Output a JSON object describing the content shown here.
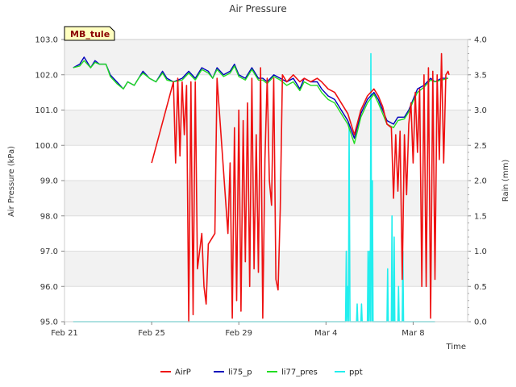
{
  "chart_data": {
    "type": "line",
    "title": "Air Pressure",
    "xlabel": "Time",
    "ylabel": "Air Pressure (kPa)",
    "y2label": "Rain (mm)",
    "badge": "MB_tule",
    "xlim": [
      0,
      18.5
    ],
    "ylim": [
      95.0,
      103.0
    ],
    "y2lim": [
      0.0,
      4.0
    ],
    "x_ticks": [
      {
        "value": 0,
        "label": "Feb 21"
      },
      {
        "value": 4,
        "label": "Feb 25"
      },
      {
        "value": 8,
        "label": "Feb 29"
      },
      {
        "value": 12,
        "label": "Mar 4"
      },
      {
        "value": 16,
        "label": "Mar 8"
      }
    ],
    "y_ticks": [
      "95.0",
      "96.0",
      "97.0",
      "98.0",
      "99.0",
      "100.0",
      "101.0",
      "102.0",
      "103.0"
    ],
    "y2_ticks": [
      "0.0",
      "0.5",
      "1.0",
      "1.5",
      "2.0",
      "2.5",
      "3.0",
      "3.5",
      "4.0"
    ],
    "grid": true,
    "legend_position": "bottom-center",
    "colors": {
      "AirP": "#ee1111",
      "li75_p": "#0000bb",
      "li77_pres": "#22dd22",
      "ppt": "#22eeee",
      "band": "#f2f2f2"
    },
    "series": [
      {
        "name": "li75_p",
        "axis": "left",
        "x": [
          0.4,
          0.7,
          0.9,
          1.2,
          1.4,
          1.6,
          1.9,
          2.1,
          2.4,
          2.7,
          2.9,
          3.2,
          3.4,
          3.6,
          3.9,
          4.2,
          4.5,
          4.7,
          5.0,
          5.4,
          5.7,
          6.0,
          6.3,
          6.6,
          6.8,
          7.0,
          7.3,
          7.6,
          7.8,
          8.0,
          8.3,
          8.6,
          8.9,
          9.1,
          9.3,
          9.6,
          9.9,
          10.2,
          10.5,
          10.8,
          11.0,
          11.3,
          11.6,
          11.8,
          12.1,
          12.4,
          12.7,
          13.0,
          13.3,
          13.6,
          13.9,
          14.2,
          14.4,
          14.6,
          14.8,
          15.1,
          15.3,
          15.6,
          15.8,
          16.0,
          16.2,
          16.5,
          16.8,
          17.0,
          17.3,
          17.6
        ],
        "values": [
          102.2,
          102.3,
          102.5,
          102.2,
          102.4,
          102.3,
          102.3,
          102.0,
          101.8,
          101.6,
          101.8,
          101.7,
          101.9,
          102.1,
          101.9,
          101.8,
          102.1,
          101.9,
          101.8,
          101.9,
          102.1,
          101.9,
          102.2,
          102.1,
          101.9,
          102.2,
          102.0,
          102.1,
          102.3,
          102.0,
          101.9,
          102.2,
          101.9,
          101.9,
          101.8,
          102.0,
          101.9,
          101.8,
          101.9,
          101.6,
          101.9,
          101.8,
          101.8,
          101.6,
          101.4,
          101.3,
          101.0,
          100.7,
          100.2,
          100.9,
          101.3,
          101.5,
          101.3,
          101.0,
          100.7,
          100.6,
          100.8,
          100.8,
          101.0,
          101.3,
          101.6,
          101.7,
          101.9,
          101.8,
          101.9,
          101.9
        ]
      },
      {
        "name": "li77_pres",
        "axis": "left",
        "x": [
          0.4,
          0.7,
          0.9,
          1.2,
          1.4,
          1.6,
          1.9,
          2.1,
          2.4,
          2.7,
          2.9,
          3.2,
          3.4,
          3.6,
          3.9,
          4.2,
          4.5,
          4.7,
          5.0,
          5.4,
          5.7,
          6.0,
          6.3,
          6.6,
          6.8,
          7.0,
          7.3,
          7.6,
          7.8,
          8.0,
          8.3,
          8.6,
          8.9,
          9.1,
          9.3,
          9.6,
          9.9,
          10.2,
          10.5,
          10.8,
          11.0,
          11.3,
          11.6,
          11.8,
          12.1,
          12.4,
          12.7,
          13.0,
          13.3,
          13.6,
          13.9,
          14.2,
          14.4,
          14.6,
          14.8,
          15.1,
          15.3,
          15.6,
          15.8,
          16.0,
          16.2,
          16.5,
          16.8,
          17.0,
          17.3,
          17.6
        ],
        "values": [
          102.2,
          102.25,
          102.4,
          102.2,
          102.35,
          102.3,
          102.3,
          101.95,
          101.75,
          101.6,
          101.8,
          101.7,
          101.9,
          102.05,
          101.9,
          101.8,
          102.05,
          101.85,
          101.8,
          101.85,
          102.05,
          101.85,
          102.15,
          102.05,
          101.9,
          102.15,
          101.95,
          102.05,
          102.25,
          101.95,
          101.85,
          102.15,
          101.85,
          101.85,
          101.75,
          101.95,
          101.85,
          101.7,
          101.8,
          101.55,
          101.8,
          101.7,
          101.7,
          101.5,
          101.3,
          101.2,
          100.9,
          100.6,
          100.05,
          100.8,
          101.2,
          101.45,
          101.2,
          100.9,
          100.6,
          100.5,
          100.7,
          100.75,
          100.95,
          101.25,
          101.5,
          101.65,
          101.85,
          101.8,
          101.85,
          101.9
        ]
      },
      {
        "name": "AirP",
        "axis": "left",
        "x": [
          4.0,
          5.0,
          5.1,
          5.2,
          5.3,
          5.4,
          5.5,
          5.6,
          5.7,
          5.8,
          5.9,
          6.0,
          6.1,
          6.2,
          6.3,
          6.4,
          6.5,
          6.6,
          6.7,
          6.9,
          7.0,
          7.5,
          7.6,
          7.7,
          7.8,
          7.9,
          8.0,
          8.1,
          8.2,
          8.3,
          8.4,
          8.5,
          8.6,
          8.7,
          8.8,
          8.9,
          9.0,
          9.1,
          9.2,
          9.3,
          9.4,
          9.5,
          9.6,
          9.7,
          9.8,
          9.9,
          10.0,
          10.2,
          10.5,
          10.8,
          11.0,
          11.3,
          11.6,
          11.8,
          12.1,
          12.4,
          12.7,
          13.0,
          13.3,
          13.6,
          13.9,
          14.2,
          14.4,
          14.6,
          14.8,
          15.0,
          15.1,
          15.2,
          15.3,
          15.4,
          15.5,
          15.6,
          15.7,
          15.8,
          15.9,
          16.0,
          16.1,
          16.2,
          16.3,
          16.4,
          16.5,
          16.6,
          16.7,
          16.8,
          16.9,
          17.0,
          17.1,
          17.2,
          17.3,
          17.4,
          17.5,
          17.6,
          17.65
        ],
        "values": [
          99.5,
          101.8,
          99.5,
          101.9,
          99.7,
          101.8,
          100.3,
          101.7,
          95.0,
          101.8,
          95.2,
          101.8,
          96.5,
          97.0,
          97.5,
          96.0,
          95.5,
          97.2,
          97.3,
          97.5,
          101.9,
          97.5,
          99.5,
          95.1,
          100.5,
          95.6,
          101.0,
          95.3,
          100.7,
          96.7,
          101.2,
          96.0,
          101.9,
          96.5,
          100.3,
          96.4,
          102.2,
          95.1,
          99.6,
          101.9,
          99.0,
          98.3,
          101.9,
          96.2,
          95.9,
          98.2,
          102.0,
          101.8,
          102.0,
          101.8,
          101.9,
          101.8,
          101.9,
          101.8,
          101.6,
          101.5,
          101.2,
          100.9,
          100.3,
          101.0,
          101.4,
          101.6,
          101.4,
          101.1,
          100.6,
          100.5,
          98.5,
          100.3,
          98.7,
          100.4,
          96.2,
          100.3,
          98.6,
          100.6,
          101.2,
          99.5,
          101.5,
          99.8,
          101.6,
          96.0,
          102.0,
          96.0,
          102.2,
          95.1,
          102.1,
          96.2,
          102.0,
          99.6,
          102.6,
          99.5,
          102.0,
          102.1,
          102.0
        ]
      },
      {
        "name": "ppt",
        "axis": "right",
        "x": [
          0.4,
          12.9,
          12.93,
          12.96,
          13.0,
          13.03,
          13.06,
          13.1,
          13.13,
          13.4,
          13.43,
          13.46,
          13.6,
          13.63,
          13.66,
          13.9,
          13.93,
          13.96,
          14.0,
          14.03,
          14.06,
          14.1,
          14.13,
          14.16,
          14.2,
          14.23,
          14.26,
          14.3,
          14.33,
          14.36,
          14.4,
          14.5,
          14.8,
          14.83,
          14.86,
          15.0,
          15.03,
          15.06,
          15.1,
          15.13,
          15.16,
          15.3,
          15.33,
          15.36,
          15.5,
          15.53,
          15.56,
          15.6,
          15.63,
          15.66,
          15.7,
          15.73,
          15.76,
          15.9,
          15.93,
          15.96,
          16.0,
          16.03,
          16.06,
          16.2,
          16.23,
          16.26,
          16.4,
          16.43,
          16.46,
          17.0
        ],
        "values": [
          0,
          0,
          1.0,
          0,
          0.5,
          0,
          2.8,
          0,
          0,
          0,
          0.25,
          0,
          0,
          0.25,
          0,
          0,
          1.0,
          0,
          1.0,
          0,
          3.8,
          0,
          2.0,
          0,
          0,
          0,
          0,
          0,
          0,
          0,
          0,
          0,
          0,
          0.75,
          0,
          0,
          1.5,
          0,
          0,
          1.2,
          0,
          0,
          0.5,
          0,
          0,
          1.0,
          0,
          0,
          0,
          0,
          0,
          0,
          0,
          0,
          0,
          0,
          0,
          0,
          0,
          0,
          0,
          0,
          0,
          0,
          0,
          0
        ]
      }
    ]
  }
}
